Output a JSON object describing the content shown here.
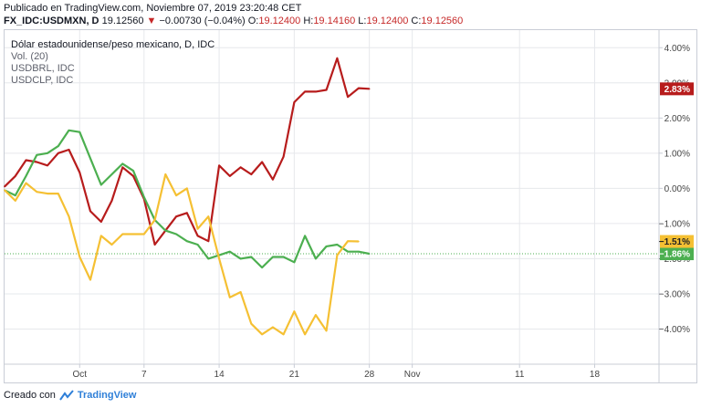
{
  "header": {
    "published": "Publicado en TradingView.com, Noviembre 07, 2019 23:20:48 CET",
    "symbol": "FX_IDC:USDMXN, D",
    "price": "19.12560",
    "change_arrow": "▼",
    "change": "−0.00730 (−0.04%)",
    "o_label": "O:",
    "o_value": "19.12400",
    "h_label": "H:",
    "h_value": "19.14160",
    "l_label": "L:",
    "l_value": "19.12400",
    "c_label": "C:",
    "c_value": "19.12560"
  },
  "legend": {
    "title": "Dólar estadounidense/peso mexicano, D, IDC",
    "volume": "Vol. (20)",
    "s2": "USDBRL, IDC",
    "s3": "USDCLP, IDC"
  },
  "footer": {
    "prefix": "Creado con",
    "brand": "TradingView"
  },
  "colors": {
    "usdmxn": "#b71c1c",
    "usdbrl": "#4caf50",
    "usdclp": "#f5c033",
    "grid": "#e6e8ec",
    "axis_text": "#444444"
  },
  "chart_data": {
    "type": "line",
    "y_unit": "%",
    "ylim": [
      -5.0,
      4.5
    ],
    "y_ticks": [
      "4.00%",
      "3.00%",
      "2.00%",
      "1.00%",
      "0.00%",
      "−1.00%",
      "−2.00%",
      "−3.00%",
      "−4.00%"
    ],
    "y_tick_values": [
      4,
      3,
      2,
      1,
      0,
      -1,
      -2,
      -3,
      -4
    ],
    "x_ticks": [
      "Oct",
      "7",
      "14",
      "21",
      "28",
      "Nov",
      "11",
      "18"
    ],
    "x_tick_dates": [
      "2019-10-01",
      "2019-10-07",
      "2019-10-14",
      "2019-10-21",
      "2019-10-28",
      "2019-11-01",
      "2019-11-11",
      "2019-11-18"
    ],
    "xlim": [
      "2019-09-24",
      "2019-11-24"
    ],
    "grid": true,
    "legend_position": "top-left",
    "series": [
      {
        "name": "USDMXN",
        "color_key": "usdmxn",
        "last_label": "2.83%",
        "points": [
          [
            "2019-09-24",
            0.05
          ],
          [
            "2019-09-25",
            0.35
          ],
          [
            "2019-09-26",
            0.8
          ],
          [
            "2019-09-27",
            0.75
          ],
          [
            "2019-09-28",
            0.65
          ],
          [
            "2019-09-29",
            1.0
          ],
          [
            "2019-09-30",
            1.1
          ],
          [
            "2019-10-01",
            0.45
          ],
          [
            "2019-10-02",
            -0.65
          ],
          [
            "2019-10-03",
            -0.95
          ],
          [
            "2019-10-04",
            -0.35
          ],
          [
            "2019-10-05",
            0.6
          ],
          [
            "2019-10-06",
            0.35
          ],
          [
            "2019-10-07",
            -0.3
          ],
          [
            "2019-10-08",
            -1.6
          ],
          [
            "2019-10-09",
            -1.2
          ],
          [
            "2019-10-10",
            -0.8
          ],
          [
            "2019-10-11",
            -0.7
          ],
          [
            "2019-10-12",
            -1.35
          ],
          [
            "2019-10-13",
            -1.5
          ],
          [
            "2019-10-14",
            0.65
          ],
          [
            "2019-10-15",
            0.35
          ],
          [
            "2019-10-16",
            0.6
          ],
          [
            "2019-10-17",
            0.4
          ],
          [
            "2019-10-18",
            0.75
          ],
          [
            "2019-10-19",
            0.25
          ],
          [
            "2019-10-20",
            0.9
          ],
          [
            "2019-10-21",
            2.45
          ],
          [
            "2019-10-22",
            2.75
          ],
          [
            "2019-10-23",
            2.75
          ],
          [
            "2019-10-24",
            2.8
          ],
          [
            "2019-10-25",
            3.7
          ],
          [
            "2019-10-26",
            2.6
          ],
          [
            "2019-10-27",
            2.85
          ],
          [
            "2019-10-28",
            2.83
          ]
        ]
      },
      {
        "name": "USDBRL",
        "color_key": "usdbrl",
        "last_label": "−1.86%",
        "points": [
          [
            "2019-09-24",
            -0.05
          ],
          [
            "2019-09-25",
            -0.2
          ],
          [
            "2019-09-26",
            0.35
          ],
          [
            "2019-09-27",
            0.95
          ],
          [
            "2019-09-28",
            1.0
          ],
          [
            "2019-09-29",
            1.2
          ],
          [
            "2019-09-30",
            1.65
          ],
          [
            "2019-10-01",
            1.6
          ],
          [
            "2019-10-02",
            0.85
          ],
          [
            "2019-10-03",
            0.1
          ],
          [
            "2019-10-04",
            0.4
          ],
          [
            "2019-10-05",
            0.7
          ],
          [
            "2019-10-06",
            0.5
          ],
          [
            "2019-10-07",
            -0.25
          ],
          [
            "2019-10-08",
            -0.9
          ],
          [
            "2019-10-09",
            -1.2
          ],
          [
            "2019-10-10",
            -1.3
          ],
          [
            "2019-10-11",
            -1.5
          ],
          [
            "2019-10-12",
            -1.6
          ],
          [
            "2019-10-13",
            -2.0
          ],
          [
            "2019-10-14",
            -1.9
          ],
          [
            "2019-10-15",
            -1.8
          ],
          [
            "2019-10-16",
            -2.0
          ],
          [
            "2019-10-17",
            -1.95
          ],
          [
            "2019-10-18",
            -2.25
          ],
          [
            "2019-10-19",
            -1.95
          ],
          [
            "2019-10-20",
            -1.95
          ],
          [
            "2019-10-21",
            -2.1
          ],
          [
            "2019-10-22",
            -1.35
          ],
          [
            "2019-10-23",
            -2.0
          ],
          [
            "2019-10-24",
            -1.65
          ],
          [
            "2019-10-25",
            -1.6
          ],
          [
            "2019-10-26",
            -1.8
          ],
          [
            "2019-10-27",
            -1.8
          ],
          [
            "2019-10-28",
            -1.86
          ]
        ]
      },
      {
        "name": "USDCLP",
        "color_key": "usdclp",
        "last_label": "−1.51%",
        "points": [
          [
            "2019-09-24",
            -0.05
          ],
          [
            "2019-09-25",
            -0.35
          ],
          [
            "2019-09-26",
            0.15
          ],
          [
            "2019-09-27",
            -0.1
          ],
          [
            "2019-09-28",
            -0.15
          ],
          [
            "2019-09-29",
            -0.15
          ],
          [
            "2019-09-30",
            -0.8
          ],
          [
            "2019-10-01",
            -1.95
          ],
          [
            "2019-10-02",
            -2.6
          ],
          [
            "2019-10-03",
            -1.35
          ],
          [
            "2019-10-04",
            -1.6
          ],
          [
            "2019-10-05",
            -1.3
          ],
          [
            "2019-10-06",
            -1.3
          ],
          [
            "2019-10-07",
            -1.3
          ],
          [
            "2019-10-08",
            -0.9
          ],
          [
            "2019-10-09",
            0.4
          ],
          [
            "2019-10-10",
            -0.2
          ],
          [
            "2019-10-11",
            0.0
          ],
          [
            "2019-10-12",
            -1.15
          ],
          [
            "2019-10-13",
            -0.8
          ],
          [
            "2019-10-14",
            -2.0
          ],
          [
            "2019-10-15",
            -3.1
          ],
          [
            "2019-10-16",
            -2.95
          ],
          [
            "2019-10-17",
            -3.85
          ],
          [
            "2019-10-18",
            -4.15
          ],
          [
            "2019-10-19",
            -3.95
          ],
          [
            "2019-10-20",
            -4.15
          ],
          [
            "2019-10-21",
            -3.5
          ],
          [
            "2019-10-22",
            -4.15
          ],
          [
            "2019-10-23",
            -3.6
          ],
          [
            "2019-10-24",
            -4.05
          ],
          [
            "2019-10-25",
            -1.9
          ],
          [
            "2019-10-26",
            -1.5
          ],
          [
            "2019-10-27",
            -1.51
          ]
        ]
      }
    ]
  }
}
